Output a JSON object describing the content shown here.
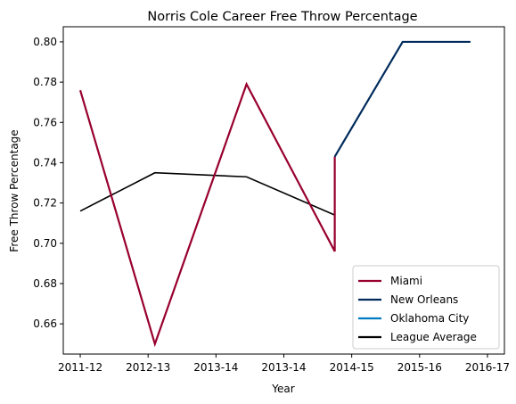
{
  "chart_data": {
    "type": "line",
    "title": "Norris Cole Career Free Throw Percentage",
    "xlabel": "Year",
    "ylabel": "Free Throw Percentage",
    "x_tick_labels": [
      "2011-12",
      "2012-13",
      "2013-14",
      "2013-14",
      "2014-15",
      "2015-16",
      "2016-17"
    ],
    "xlim": [
      -0.25,
      6.25
    ],
    "ylim": [
      0.645,
      0.8075
    ],
    "y_ticks": [
      "0.66",
      "0.68",
      "0.70",
      "0.72",
      "0.74",
      "0.76",
      "0.78",
      "0.80"
    ],
    "grid": false,
    "legend_placement": "bottom-right",
    "series": [
      {
        "name": "Miami",
        "color": "#98002e",
        "points": [
          [
            0,
            0.776
          ],
          [
            1.1,
            0.65
          ],
          [
            2.45,
            0.779
          ],
          [
            3.75,
            0.696
          ],
          [
            3.75,
            0.743
          ]
        ]
      },
      {
        "name": "New Orleans",
        "color": "#002b5c",
        "points": [
          [
            3.75,
            0.743
          ],
          [
            4.75,
            0.8
          ],
          [
            5.75,
            0.8
          ]
        ]
      },
      {
        "name": "Oklahoma City",
        "color": "#007ac1",
        "points": []
      },
      {
        "name": "League Average",
        "color": "#000000",
        "points": [
          [
            0,
            0.716
          ],
          [
            1.1,
            0.735
          ],
          [
            2.45,
            0.733
          ],
          [
            3.75,
            0.714
          ]
        ]
      }
    ]
  }
}
